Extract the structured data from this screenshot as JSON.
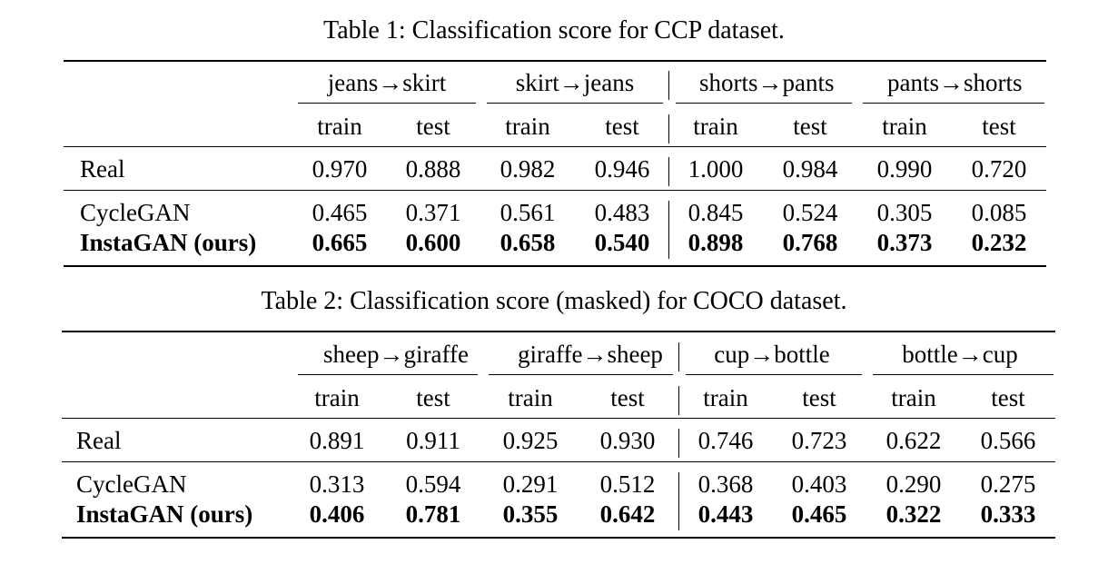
{
  "tables": [
    {
      "caption": "Table 1: Classification score for CCP dataset.",
      "groups": [
        "jeans→skirt",
        "skirt→jeans",
        "shorts→pants",
        "pants→shorts"
      ],
      "subheaders": [
        "train",
        "test",
        "train",
        "test",
        "train",
        "test",
        "train",
        "test"
      ],
      "rows": [
        {
          "label": "Real",
          "values": [
            "0.970",
            "0.888",
            "0.982",
            "0.946",
            "1.000",
            "0.984",
            "0.990",
            "0.720"
          ]
        },
        {
          "label": "CycleGAN",
          "values": [
            "0.465",
            "0.371",
            "0.561",
            "0.483",
            "0.845",
            "0.524",
            "0.305",
            "0.085"
          ]
        },
        {
          "label": "InstaGAN (ours)",
          "values": [
            "0.665",
            "0.600",
            "0.658",
            "0.540",
            "0.898",
            "0.768",
            "0.373",
            "0.232"
          ]
        }
      ]
    },
    {
      "caption": "Table 2: Classification score (masked) for COCO dataset.",
      "groups": [
        "sheep→giraffe",
        "giraffe→sheep",
        "cup→bottle",
        "bottle→cup"
      ],
      "subheaders": [
        "train",
        "test",
        "train",
        "test",
        "train",
        "test",
        "train",
        "test"
      ],
      "rows": [
        {
          "label": "Real",
          "values": [
            "0.891",
            "0.911",
            "0.925",
            "0.930",
            "0.746",
            "0.723",
            "0.622",
            "0.566"
          ]
        },
        {
          "label": "CycleGAN",
          "values": [
            "0.313",
            "0.594",
            "0.291",
            "0.512",
            "0.368",
            "0.403",
            "0.290",
            "0.275"
          ]
        },
        {
          "label": "InstaGAN (ours)",
          "values": [
            "0.406",
            "0.781",
            "0.355",
            "0.642",
            "0.443",
            "0.465",
            "0.322",
            "0.333"
          ]
        }
      ]
    }
  ]
}
